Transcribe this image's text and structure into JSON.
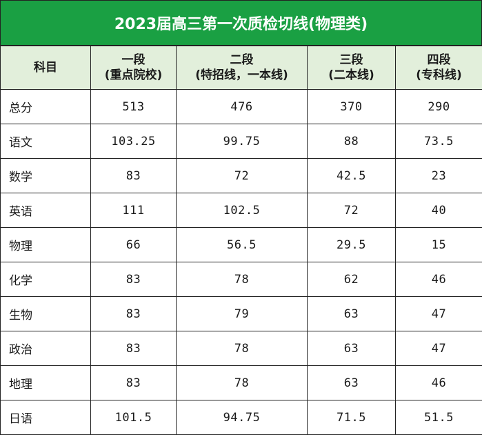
{
  "title": "2023届高三第一次质检切线(物理类)",
  "header": {
    "subject": "科目",
    "col1": {
      "name": "一段",
      "note": "(重点院校)"
    },
    "col2": {
      "name": "二段",
      "note": "(特招线，一本线)"
    },
    "col3": {
      "name": "三段",
      "note": "(二本线)"
    },
    "col4": {
      "name": "四段",
      "note": "(专科线)"
    }
  },
  "rows": [
    {
      "subject": "总分",
      "v1": "513",
      "v2": "476",
      "v3": "370",
      "v4": "290"
    },
    {
      "subject": "语文",
      "v1": "103.25",
      "v2": "99.75",
      "v3": "88",
      "v4": "73.5"
    },
    {
      "subject": "数学",
      "v1": "83",
      "v2": "72",
      "v3": "42.5",
      "v4": "23"
    },
    {
      "subject": "英语",
      "v1": "111",
      "v2": "102.5",
      "v3": "72",
      "v4": "40"
    },
    {
      "subject": "物理",
      "v1": "66",
      "v2": "56.5",
      "v3": "29.5",
      "v4": "15"
    },
    {
      "subject": "化学",
      "v1": "83",
      "v2": "78",
      "v3": "62",
      "v4": "46"
    },
    {
      "subject": "生物",
      "v1": "83",
      "v2": "79",
      "v3": "63",
      "v4": "47"
    },
    {
      "subject": "政治",
      "v1": "83",
      "v2": "78",
      "v3": "63",
      "v4": "47"
    },
    {
      "subject": "地理",
      "v1": "83",
      "v2": "78",
      "v3": "63",
      "v4": "46"
    },
    {
      "subject": "日语",
      "v1": "101.5",
      "v2": "94.75",
      "v3": "71.5",
      "v4": "51.5"
    }
  ],
  "colors": {
    "title_bg": "#1aa043",
    "header_bg": "#e2efdb"
  }
}
